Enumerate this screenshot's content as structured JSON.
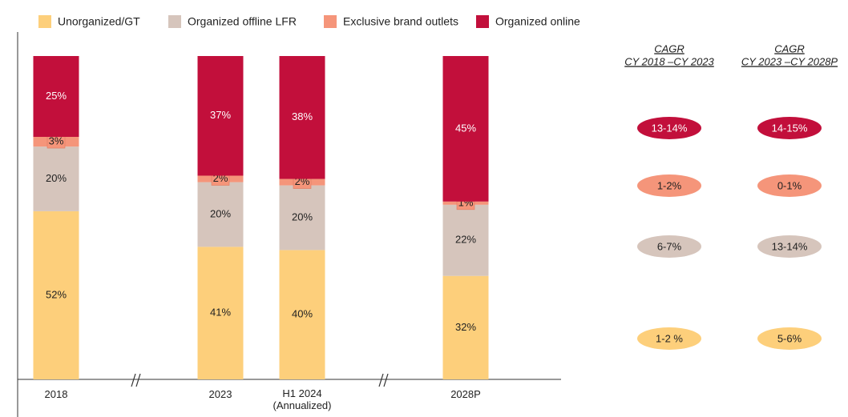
{
  "chart_data": {
    "type": "stacked_bar",
    "categories": [
      "2018",
      "2023",
      "H1 2024 (Annualized)",
      "2028P"
    ],
    "ylim": [
      0,
      100
    ],
    "series": [
      {
        "name": "Unorganized/GT",
        "color": "#fdcf7b",
        "values": [
          52,
          41,
          40,
          32
        ],
        "value_labels": [
          "52%",
          "41%",
          "40%",
          "32%"
        ]
      },
      {
        "name": "Organized offline LFR",
        "color": "#d6c5bc",
        "values": [
          20,
          20,
          20,
          22
        ],
        "value_labels": [
          "20%",
          "20%",
          "20%",
          "22%"
        ]
      },
      {
        "name": "Exclusive brand outlets",
        "color": "#f5957a",
        "values": [
          3,
          2,
          2,
          1
        ],
        "value_labels": [
          "3%",
          "2%",
          "2%",
          "1%"
        ]
      },
      {
        "name": "Organized online",
        "color": "#c20f3b",
        "values": [
          25,
          37,
          38,
          45
        ],
        "value_labels": [
          "25%",
          "37%",
          "38%",
          "45%"
        ]
      }
    ],
    "cagr": [
      {
        "title": "CAGR",
        "subtitle": "CY 2018 –CY 2023",
        "values": [
          "1-2 %",
          "6-7%",
          "1-2%",
          "13-14%"
        ]
      },
      {
        "title": "CAGR",
        "subtitle": "CY 2023 –CY 2028P",
        "values": [
          "5-6%",
          "13-14%",
          "0-1%",
          "14-15%"
        ]
      }
    ]
  }
}
